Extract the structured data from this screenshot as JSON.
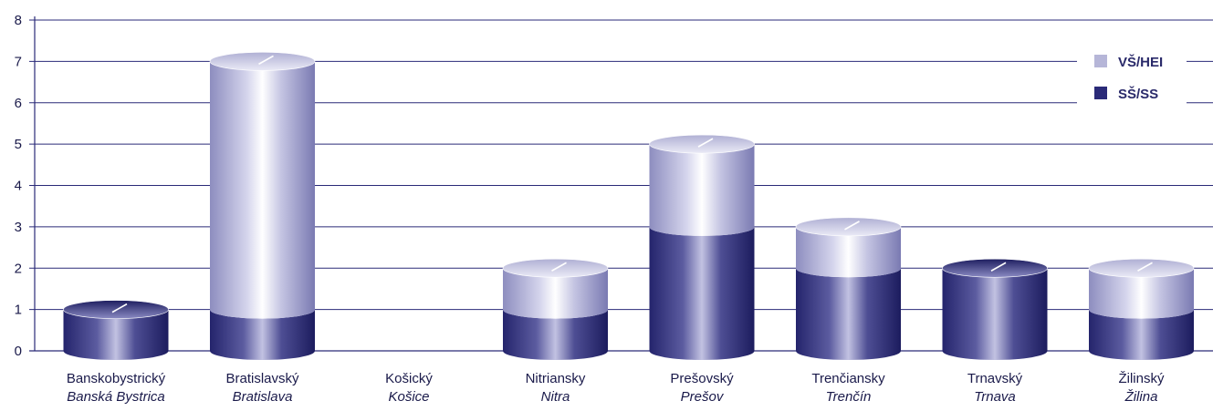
{
  "chart_data": {
    "type": "bar",
    "stacked": true,
    "bar_shape": "3d-cylinder",
    "categories": [
      {
        "main": "Banskobystrický",
        "sub": "Banská Bystrica"
      },
      {
        "main": "Bratislavský",
        "sub": "Bratislava"
      },
      {
        "main": "Košický",
        "sub": "Košice"
      },
      {
        "main": "Nitriansky",
        "sub": "Nitra"
      },
      {
        "main": "Prešovský",
        "sub": "Prešov"
      },
      {
        "main": "Trenčiansky",
        "sub": "Trenčín"
      },
      {
        "main": "Trnavský",
        "sub": "Trnava"
      },
      {
        "main": "Žilinský",
        "sub": "Žilina"
      }
    ],
    "series": [
      {
        "name": "SŠ/SS",
        "color": "#2a2a78",
        "values": [
          1,
          1,
          0,
          1,
          3,
          2,
          2,
          1
        ]
      },
      {
        "name": "VŠ/HEI",
        "color": "#b6b6d8",
        "values": [
          0,
          6,
          0,
          1,
          2,
          1,
          0,
          1
        ]
      }
    ],
    "legend_order": [
      "VŠ/HEI",
      "SŠ/SS"
    ],
    "ylim": [
      0,
      8
    ],
    "yticks": [
      "0",
      "1",
      "2",
      "3",
      "4",
      "5",
      "6",
      "7",
      "8"
    ],
    "grid": true,
    "grid_color": "#2a2a78",
    "legend_position": "top-right",
    "title": "",
    "xlabel": "",
    "ylabel": ""
  }
}
